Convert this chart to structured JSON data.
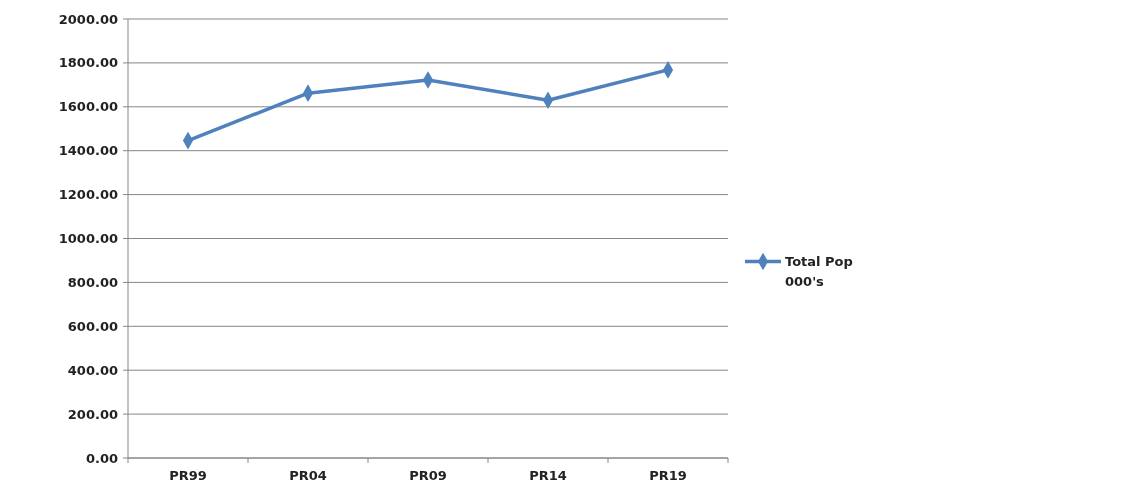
{
  "chart_data": {
    "type": "line",
    "categories": [
      "PR99",
      "PR04",
      "PR09",
      "PR14",
      "PR19"
    ],
    "series": [
      {
        "name": "Total Pop 000's",
        "color": "#4f81bd",
        "values": [
          1446,
          1662,
          1722,
          1630,
          1768
        ]
      }
    ],
    "ylim": [
      0,
      2000
    ],
    "yticks": [
      {
        "value": 0,
        "label": "0.00"
      },
      {
        "value": 200,
        "label": "200.00"
      },
      {
        "value": 400,
        "label": "400.00"
      },
      {
        "value": 600,
        "label": "600.00"
      },
      {
        "value": 800,
        "label": "800.00"
      },
      {
        "value": 1000,
        "label": "1000.00"
      },
      {
        "value": 1200,
        "label": "1200.00"
      },
      {
        "value": 1400,
        "label": "1400.00"
      },
      {
        "value": 1600,
        "label": "1600.00"
      },
      {
        "value": 1800,
        "label": "1800.00"
      },
      {
        "value": 2000,
        "label": "2000.00"
      }
    ],
    "grid": "y",
    "legend": "right",
    "marker": "diamond"
  }
}
